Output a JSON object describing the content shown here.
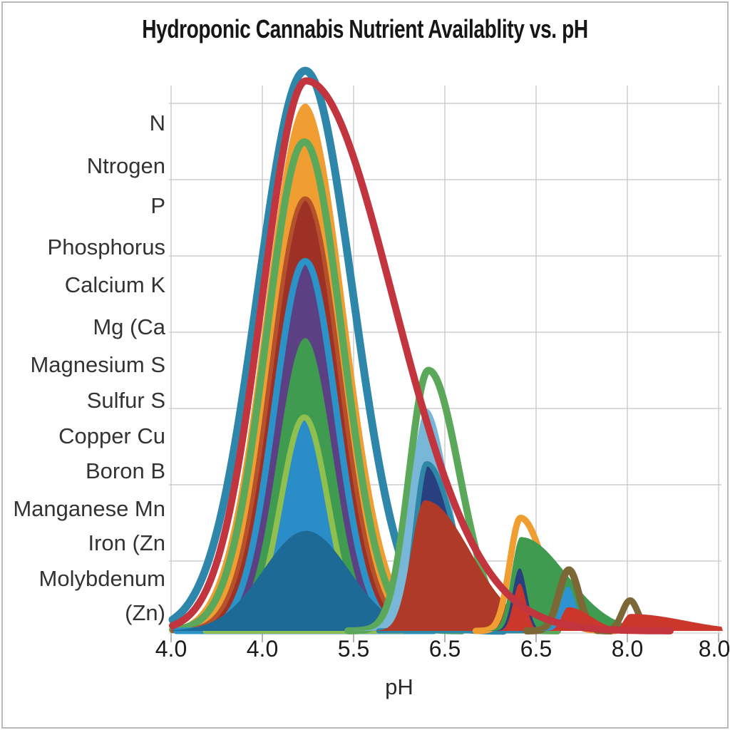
{
  "frame": {
    "border_color": "#b9b9b9",
    "background": "#ffffff"
  },
  "chart_data": {
    "type": "area",
    "title": "Hydroponic Cannabis Nutrient Availablity vs. pH",
    "xlabel": "pH",
    "x_tick_labels": [
      "4.0",
      "4.0",
      "5.5",
      "6.5",
      "6.5",
      "8.0",
      "8.0"
    ],
    "y_axis_labels": [
      "N",
      "Ntrogen",
      "P",
      "Phosphorus",
      "Calcium K",
      "Mg (Ca",
      "Magnesium S",
      "Sulfur S",
      "Copper Cu",
      "Boron B",
      "Manganese Mn",
      "Iron (Zn",
      "Molybdenum",
      "(Zn)"
    ],
    "grid": true,
    "legend_position": "left",
    "grid_color": "#cdcdcd",
    "axis_tick_color": "#b5b5b5",
    "x_unit": "tick_index_0_to_6",
    "y_unit": "availability_fraction_0_to_1",
    "series": [
      {
        "name": "teal-outline-main",
        "style": "stroke",
        "color": "#2e86ab",
        "w": 11,
        "x": 1.47,
        "h": 0.991,
        "s": 0.52
      },
      {
        "name": "orange-band-main",
        "style": "fill",
        "color": "#f09e32",
        "x": 1.47,
        "h": 0.933,
        "s": 0.445
      },
      {
        "name": "green-outline-main",
        "style": "stroke",
        "color": "#5ca85b",
        "w": 10,
        "x": 1.46,
        "h": 0.865,
        "s": 0.414
      },
      {
        "name": "dark-red-band-main",
        "style": "fill",
        "color": "#9e3126",
        "stroke": "#b5512b",
        "w": 6,
        "x": 1.47,
        "h": 0.765,
        "s": 0.375
      },
      {
        "name": "purple-band-main",
        "style": "fill",
        "color": "#5c4084",
        "stroke": "#2b93c7",
        "w": 9,
        "x": 1.47,
        "h": 0.654,
        "s": 0.336
      },
      {
        "name": "green-band-main",
        "style": "fill",
        "color": "#3f9b4f",
        "x": 1.47,
        "h": 0.518,
        "s": 0.3
      },
      {
        "name": "light-blue-band-main",
        "style": "fill",
        "color": "#2a8dc7",
        "stroke": "#8fc04f",
        "w": 8,
        "x": 1.46,
        "h": 0.378,
        "s": 0.258
      },
      {
        "name": "deep-blue-inner-main",
        "style": "fill",
        "color": "#1d6a96",
        "x": 1.48,
        "h": 0.177,
        "s": 0.47
      },
      {
        "name": "green-outline-peak2",
        "style": "stroke",
        "color": "#5ca85b",
        "w": 10,
        "x": 2.82,
        "h": 0.461,
        "s": 0.21,
        "sr": 0.34
      },
      {
        "name": "sky-blue-peak2",
        "style": "fill",
        "color": "#79b7d9",
        "x": 2.8,
        "h": 0.393,
        "s": 0.19,
        "sr": 0.26
      },
      {
        "name": "navy-peak2",
        "style": "fill",
        "color": "#283f80",
        "stroke": "#2f87a8",
        "w": 7,
        "x": 2.8,
        "h": 0.296,
        "s": 0.125,
        "sr": 0.3
      },
      {
        "name": "rust-peak2",
        "style": "fill",
        "color": "#b03a28",
        "x": 2.78,
        "h": 0.231,
        "s": 0.15,
        "sr": 0.5
      },
      {
        "name": "orange-outline-peak3",
        "style": "stroke",
        "color": "#f09e32",
        "w": 9,
        "x": 3.83,
        "h": 0.2,
        "s": 0.117,
        "sr": 0.25
      },
      {
        "name": "green-peak3",
        "style": "fill",
        "color": "#3f9b4f",
        "x": 3.83,
        "h": 0.166,
        "s": 0.1,
        "sr": 0.5
      },
      {
        "name": "navy-peak3",
        "style": "fill",
        "color": "#283f80",
        "x": 3.82,
        "h": 0.111,
        "s": 0.078
      },
      {
        "name": "red-peak3",
        "style": "fill",
        "color": "#cc372b",
        "x": 3.82,
        "h": 0.084,
        "s": 0.07
      },
      {
        "name": "olive-outline-peak4",
        "style": "stroke",
        "color": "#7c6836",
        "w": 10,
        "x": 4.36,
        "h": 0.108,
        "s": 0.11
      },
      {
        "name": "blue-peak4",
        "style": "fill",
        "color": "#2e93d0",
        "x": 4.35,
        "h": 0.079,
        "s": 0.086
      },
      {
        "name": "red-peak4",
        "style": "fill",
        "color": "#cc372b",
        "x": 4.35,
        "h": 0.042,
        "s": 0.07,
        "sr": 0.25
      },
      {
        "name": "olive-outline-peak5",
        "style": "stroke",
        "color": "#7c6836",
        "w": 9,
        "x": 5.03,
        "h": 0.054,
        "s": 0.086
      },
      {
        "name": "red-peak5",
        "style": "fill",
        "color": "#cc372b",
        "x": 5.03,
        "h": 0.03,
        "s": 0.07,
        "sr": 0.6
      },
      {
        "name": "red-availability-curve",
        "style": "stroke",
        "color": "#c2353f",
        "w": 10,
        "x": 1.48,
        "h": 0.973,
        "s": 0.48,
        "sr": 0.95
      }
    ]
  }
}
